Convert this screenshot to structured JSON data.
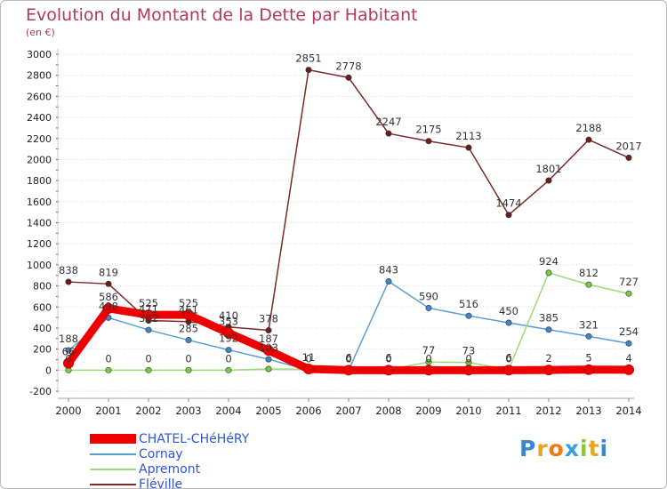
{
  "header": {
    "title": "Evolution du Montant de la Dette par Habitant",
    "subtitle": "(en €)"
  },
  "brand": {
    "logo_text": "Proxiti"
  },
  "colors": {
    "title": "#b3395e",
    "legend_text": "#2d56d6",
    "axis_text": "#222222",
    "grid": "#dddddd"
  },
  "chart_data": {
    "type": "line",
    "title": "Evolution du Montant de la Dette par Habitant",
    "subtitle": "(en €)",
    "x": [
      "2000",
      "2001",
      "2002",
      "2003",
      "2004",
      "2005",
      "2006",
      "2007",
      "2008",
      "2009",
      "2010",
      "2011",
      "2012",
      "2013",
      "2014"
    ],
    "ylim": [
      -200,
      3000
    ],
    "yticks": [
      -200,
      0,
      200,
      400,
      600,
      800,
      1000,
      1200,
      1400,
      1600,
      1800,
      2000,
      2200,
      2400,
      2600,
      2800,
      3000
    ],
    "grid": true,
    "legend_position": "bottom-left",
    "series": [
      {
        "name": "CHATEL-CHéHéRY",
        "color": "#ee0000",
        "marker_fill": "#ee0000",
        "style": "thick",
        "values": [
          66,
          586,
          525,
          525,
          353,
          187,
          11,
          0,
          0,
          0,
          0,
          0,
          2,
          5,
          4
        ],
        "labels": [
          "66",
          "586",
          "525",
          "525",
          "353",
          "187",
          "11",
          "0",
          "0",
          "0",
          "0",
          "0",
          "2",
          "5",
          "4"
        ]
      },
      {
        "name": "Cornay",
        "color": "#5a9fd4",
        "marker_fill": "#3d87c9",
        "style": "thin",
        "values": [
          188,
          498,
          382,
          285,
          192,
          103,
          0,
          0,
          843,
          590,
          516,
          450,
          385,
          321,
          254
        ],
        "labels": [
          "188",
          "498",
          "382",
          "285",
          "192",
          "103",
          "0",
          "0",
          "843",
          "590",
          "516",
          "450",
          "385",
          "321",
          "254"
        ]
      },
      {
        "name": "Apremont",
        "color": "#99dd77",
        "marker_fill": "#77cc44",
        "style": "thin",
        "values": [
          0,
          0,
          0,
          0,
          0,
          11,
          9,
          6,
          6,
          77,
          73,
          6,
          924,
          812,
          727
        ],
        "labels": [
          "0",
          "0",
          "0",
          "0",
          "0",
          "",
          "",
          "6",
          "6",
          "77",
          "73",
          "6",
          "924",
          "812",
          "727"
        ]
      },
      {
        "name": "Fléville",
        "color": "#7a2a2a",
        "marker_fill": "#6b1c1c",
        "style": "thin",
        "values": [
          838,
          819,
          471,
          461,
          410,
          378,
          2851,
          2778,
          2247,
          2175,
          2113,
          1474,
          1801,
          2188,
          2017
        ],
        "labels": [
          "838",
          "819",
          "471",
          "461",
          "410",
          "378",
          "2851",
          "2778",
          "2247",
          "2175",
          "2113",
          "1474",
          "1801",
          "2188",
          "2017"
        ]
      }
    ]
  }
}
